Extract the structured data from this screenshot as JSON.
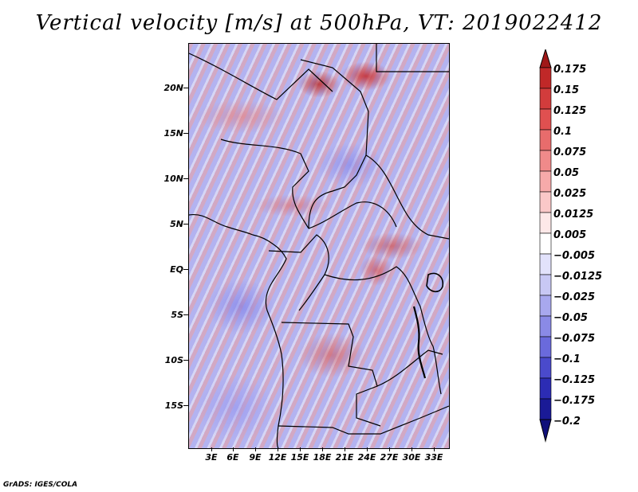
{
  "title": "Vertical velocity [m/s] at 500hPa, VT: 2019022412",
  "credit": "GrADS: IGES/COLA",
  "y_axis": [
    "20N",
    "15N",
    "10N",
    "5N",
    "EQ",
    "5S",
    "10S",
    "15S"
  ],
  "x_axis": [
    "3E",
    "6E",
    "9E",
    "12E",
    "15E",
    "18E",
    "21E",
    "24E",
    "27E",
    "30E",
    "33E"
  ],
  "colorbar": {
    "labels": [
      "0.175",
      "0.15",
      "0.125",
      "0.1",
      "0.075",
      "0.05",
      "0.025",
      "0.0125",
      "0.005",
      "−0.005",
      "−0.0125",
      "−0.025",
      "−0.05",
      "−0.075",
      "−0.1",
      "−0.125",
      "−0.175",
      "−0.2"
    ],
    "colors": [
      "#a01818",
      "#c02828",
      "#d23c3c",
      "#e05050",
      "#e86c6c",
      "#f08a8a",
      "#f6aaaa",
      "#fac8c8",
      "#fde8e8",
      "#ffffff",
      "#e2e2fb",
      "#c8c8f4",
      "#a8a8ee",
      "#8a8ae6",
      "#6a6adc",
      "#4a4acc",
      "#2c2cb4",
      "#1a1a96",
      "#10107a"
    ]
  }
}
